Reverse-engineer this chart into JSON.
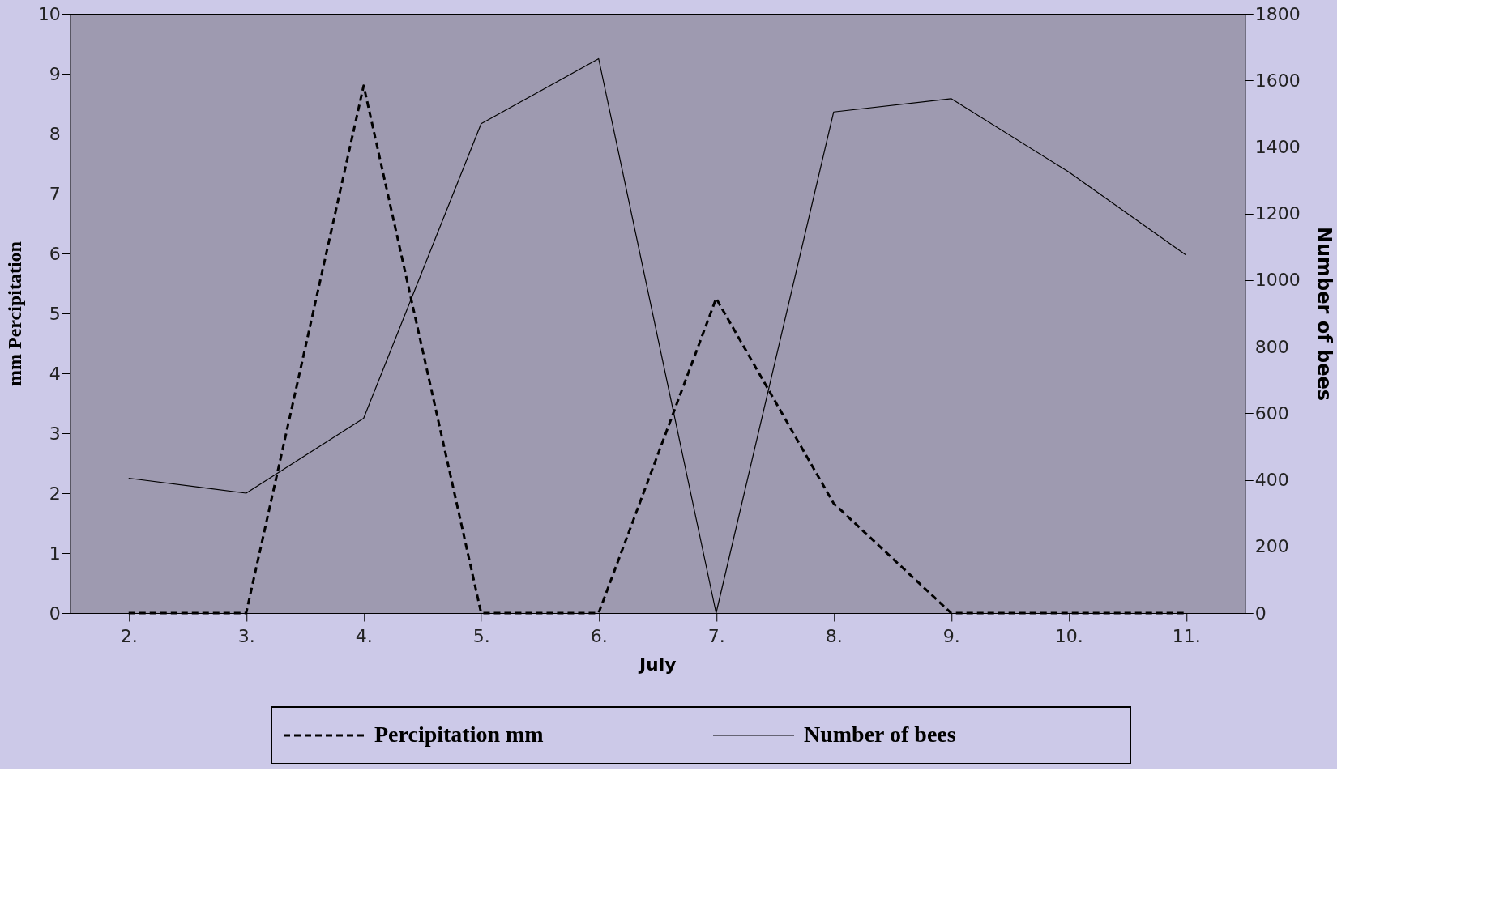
{
  "chart_data": {
    "type": "line",
    "xlabel": "July",
    "ylabel": "mm Percipitation",
    "y2label": "Number of bees",
    "categories": [
      "2.",
      "3.",
      "4.",
      "5.",
      "6.",
      "7.",
      "8.",
      "9.",
      "10.",
      "11."
    ],
    "ylim": [
      0,
      10
    ],
    "yticks": [
      0,
      1,
      2,
      3,
      4,
      5,
      6,
      7,
      8,
      9,
      10
    ],
    "y2lim": [
      0,
      1800
    ],
    "y2ticks": [
      0,
      200,
      400,
      600,
      800,
      1000,
      1200,
      1400,
      1600,
      1800
    ],
    "grid": false,
    "legend": "bottom",
    "marker": "none",
    "series": [
      {
        "name": "Percipitation mm",
        "color": "#000000",
        "line_style": "dashed",
        "values": [
          0,
          0,
          8.8,
          0,
          0,
          5.25,
          1.83,
          0,
          0,
          0
        ]
      },
      {
        "name": "Number of bees",
        "color": "#000000",
        "line_style": "solid",
        "axis": "y2",
        "values": [
          405,
          360,
          585,
          1470,
          1665,
          0,
          1505,
          1545,
          1325,
          1075
        ]
      }
    ]
  }
}
